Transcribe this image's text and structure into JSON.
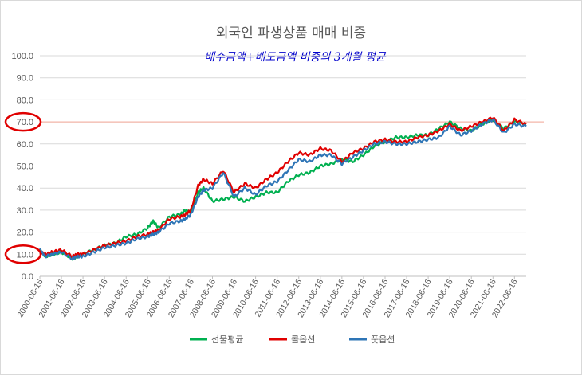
{
  "chart_data": {
    "type": "line",
    "title": "외국인 파생상품 매매 비중",
    "subtitle": "배수금액+배도금액 비중의 3개월 평균",
    "xlabel": "",
    "ylabel": "",
    "ylim": [
      0,
      100
    ],
    "y_ticks": [
      "0.0",
      "10.0",
      "20.0",
      "30.0",
      "40.0",
      "50.0",
      "60.0",
      "70.0",
      "80.0",
      "90.0",
      "100.0"
    ],
    "x_ticks": [
      "2000-06-16",
      "2001-06-16",
      "2002-06-16",
      "2003-06-16",
      "2004-06-16",
      "2005-06-16",
      "2006-06-16",
      "2007-06-16",
      "2008-06-16",
      "2009-06-16",
      "2010-06-16",
      "2011-06-16",
      "2012-06-16",
      "2013-06-16",
      "2014-06-16",
      "2015-06-16",
      "2016-06-16",
      "2017-06-16",
      "2018-06-16",
      "2019-06-16",
      "2020-06-16",
      "2021-06-16",
      "2022-06-16"
    ],
    "xlim": [
      "2000-06-16",
      "2022-12-31"
    ],
    "grid": true,
    "legend_position": "bottom",
    "reference_line": {
      "value": 70,
      "color": "#f4b6a8"
    },
    "highlighted_ticks": [
      "10.0",
      "70.0"
    ],
    "highlight_color": "#e00000",
    "series": [
      {
        "name": "선물평균",
        "color": "#00b050",
        "x": [
          "2000-06-16",
          "2000-09-16",
          "2001-01-16",
          "2001-06-16",
          "2001-12-16",
          "2002-03-16",
          "2002-06-16",
          "2002-12-16",
          "2003-06-16",
          "2003-12-16",
          "2004-06-16",
          "2004-12-16",
          "2005-06-16",
          "2005-09-16",
          "2005-12-16",
          "2006-06-16",
          "2006-12-16",
          "2007-03-16",
          "2007-06-16",
          "2007-10-16",
          "2008-01-16",
          "2008-06-16",
          "2008-12-16",
          "2009-06-16",
          "2009-12-16",
          "2010-06-16",
          "2010-12-16",
          "2011-06-16",
          "2011-12-16",
          "2012-06-16",
          "2012-12-16",
          "2013-06-16",
          "2013-12-16",
          "2014-06-16",
          "2014-12-16",
          "2015-06-16",
          "2015-12-16",
          "2016-06-16",
          "2016-12-16",
          "2017-06-16",
          "2017-12-16",
          "2018-06-16",
          "2018-12-16",
          "2019-06-16",
          "2019-12-16",
          "2020-06-16",
          "2020-12-16",
          "2021-06-16",
          "2021-12-16",
          "2022-06-16",
          "2022-12-31"
        ],
        "values": [
          12,
          9,
          10,
          11,
          8,
          9,
          10,
          12,
          14,
          15,
          18,
          19,
          22,
          25,
          22,
          27,
          28,
          30,
          29,
          38,
          40,
          34,
          35,
          36,
          34,
          36,
          38,
          38,
          43,
          46,
          47,
          50,
          51,
          53,
          52,
          55,
          59,
          61,
          63,
          63,
          64,
          64,
          67,
          70,
          67,
          66,
          69,
          71,
          67,
          70,
          69
        ]
      },
      {
        "name": "콜옵션",
        "color": "#e00000",
        "x": [
          "2000-06-16",
          "2000-09-16",
          "2001-01-16",
          "2001-06-16",
          "2001-12-16",
          "2002-03-16",
          "2002-06-16",
          "2002-12-16",
          "2003-06-16",
          "2003-12-16",
          "2004-06-16",
          "2004-12-16",
          "2005-06-16",
          "2005-09-16",
          "2005-12-16",
          "2006-06-16",
          "2006-12-16",
          "2007-03-16",
          "2007-06-16",
          "2007-10-16",
          "2008-01-16",
          "2008-06-16",
          "2008-12-16",
          "2009-06-16",
          "2009-12-16",
          "2010-06-16",
          "2010-12-16",
          "2011-06-16",
          "2011-12-16",
          "2012-06-16",
          "2012-12-16",
          "2013-06-16",
          "2013-12-16",
          "2014-06-16",
          "2014-12-16",
          "2015-06-16",
          "2015-12-16",
          "2016-06-16",
          "2016-12-16",
          "2017-06-16",
          "2017-12-16",
          "2018-06-16",
          "2018-12-16",
          "2019-06-16",
          "2019-12-16",
          "2020-06-16",
          "2020-12-16",
          "2021-06-16",
          "2021-12-16",
          "2022-06-16",
          "2022-12-31"
        ],
        "values": [
          11,
          10,
          11,
          12,
          9,
          10,
          10,
          12,
          14,
          15,
          16,
          18,
          19,
          20,
          21,
          26,
          27,
          28,
          30,
          41,
          44,
          42,
          48,
          38,
          42,
          40,
          44,
          47,
          52,
          56,
          55,
          58,
          57,
          52,
          56,
          58,
          61,
          62,
          61,
          61,
          63,
          64,
          66,
          69,
          66,
          68,
          70,
          72,
          66,
          71,
          69
        ]
      },
      {
        "name": "풋옵션",
        "color": "#2e75b6",
        "x": [
          "2000-06-16",
          "2000-09-16",
          "2001-01-16",
          "2001-06-16",
          "2001-12-16",
          "2002-03-16",
          "2002-06-16",
          "2002-12-16",
          "2003-06-16",
          "2003-12-16",
          "2004-06-16",
          "2004-12-16",
          "2005-06-16",
          "2005-09-16",
          "2005-12-16",
          "2006-06-16",
          "2006-12-16",
          "2007-03-16",
          "2007-06-16",
          "2007-10-16",
          "2008-01-16",
          "2008-06-16",
          "2008-12-16",
          "2009-06-16",
          "2009-12-16",
          "2010-06-16",
          "2010-12-16",
          "2011-06-16",
          "2011-12-16",
          "2012-06-16",
          "2012-12-16",
          "2013-06-16",
          "2013-12-16",
          "2014-06-16",
          "2014-12-16",
          "2015-06-16",
          "2015-12-16",
          "2016-06-16",
          "2016-12-16",
          "2017-06-16",
          "2017-12-16",
          "2018-06-16",
          "2018-12-16",
          "2019-06-16",
          "2019-12-16",
          "2020-06-16",
          "2020-12-16",
          "2021-06-16",
          "2021-12-16",
          "2022-06-16",
          "2022-12-31"
        ],
        "values": [
          12,
          9,
          10,
          11,
          8,
          9,
          9,
          11,
          13,
          14,
          15,
          17,
          18,
          19,
          20,
          24,
          25,
          26,
          28,
          36,
          39,
          40,
          47,
          36,
          40,
          37,
          41,
          43,
          48,
          53,
          52,
          55,
          55,
          51,
          54,
          57,
          60,
          61,
          60,
          60,
          61,
          62,
          63,
          68,
          64,
          66,
          69,
          71,
          65,
          69,
          68
        ]
      }
    ]
  }
}
